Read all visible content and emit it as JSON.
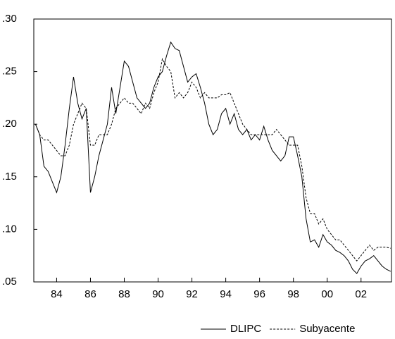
{
  "chart_data": {
    "type": "line",
    "x": [
      1982.75,
      1983,
      1983.25,
      1983.5,
      1983.75,
      1984,
      1984.25,
      1984.5,
      1984.75,
      1985,
      1985.25,
      1985.5,
      1985.75,
      1986,
      1986.25,
      1986.5,
      1986.75,
      1987,
      1987.25,
      1987.5,
      1987.75,
      1988,
      1988.25,
      1988.5,
      1988.75,
      1989,
      1989.25,
      1989.5,
      1989.75,
      1990,
      1990.25,
      1990.5,
      1990.75,
      1991,
      1991.25,
      1991.5,
      1991.75,
      1992,
      1992.25,
      1992.5,
      1992.75,
      1993,
      1993.25,
      1993.5,
      1993.75,
      1994,
      1994.25,
      1994.5,
      1994.75,
      1995,
      1995.25,
      1995.5,
      1995.75,
      1996,
      1996.25,
      1996.5,
      1996.75,
      1997,
      1997.25,
      1997.5,
      1997.75,
      1998,
      1998.25,
      1998.5,
      1998.75,
      1999,
      1999.25,
      1999.5,
      1999.75,
      2000,
      2000.25,
      2000.5,
      2000.75,
      2001,
      2001.25,
      2001.5,
      2001.75,
      2002,
      2002.25,
      2002.5,
      2002.75,
      2003,
      2003.25,
      2003.5,
      2003.75
    ],
    "series": [
      {
        "name": "DLIPC",
        "color": "#000000",
        "line_style": "solid",
        "values": [
          0.2,
          0.19,
          0.16,
          0.155,
          0.145,
          0.135,
          0.15,
          0.18,
          0.215,
          0.245,
          0.22,
          0.205,
          0.215,
          0.135,
          0.15,
          0.17,
          0.185,
          0.2,
          0.235,
          0.21,
          0.235,
          0.26,
          0.255,
          0.24,
          0.225,
          0.22,
          0.215,
          0.22,
          0.235,
          0.245,
          0.25,
          0.265,
          0.278,
          0.272,
          0.27,
          0.255,
          0.24,
          0.245,
          0.248,
          0.235,
          0.22,
          0.2,
          0.19,
          0.195,
          0.21,
          0.215,
          0.2,
          0.21,
          0.195,
          0.19,
          0.195,
          0.185,
          0.19,
          0.185,
          0.198,
          0.185,
          0.175,
          0.17,
          0.165,
          0.17,
          0.188,
          0.188,
          0.17,
          0.15,
          0.11,
          0.088,
          0.09,
          0.083,
          0.095,
          0.088,
          0.085,
          0.08,
          0.078,
          0.075,
          0.07,
          0.062,
          0.058,
          0.065,
          0.07,
          0.072,
          0.075,
          0.07,
          0.065,
          0.062,
          0.06
        ]
      },
      {
        "name": "Subyacente",
        "color": "#000000",
        "line_style": "dashed",
        "values": [
          0.2,
          0.19,
          0.185,
          0.185,
          0.18,
          0.175,
          0.17,
          0.17,
          0.18,
          0.2,
          0.21,
          0.22,
          0.215,
          0.18,
          0.18,
          0.19,
          0.19,
          0.19,
          0.2,
          0.215,
          0.22,
          0.225,
          0.22,
          0.22,
          0.215,
          0.21,
          0.22,
          0.215,
          0.23,
          0.24,
          0.262,
          0.255,
          0.25,
          0.225,
          0.23,
          0.225,
          0.23,
          0.24,
          0.235,
          0.225,
          0.23,
          0.225,
          0.225,
          0.225,
          0.228,
          0.228,
          0.23,
          0.22,
          0.21,
          0.2,
          0.195,
          0.19,
          0.19,
          0.19,
          0.19,
          0.19,
          0.19,
          0.195,
          0.19,
          0.185,
          0.18,
          0.18,
          0.18,
          0.16,
          0.13,
          0.115,
          0.115,
          0.105,
          0.11,
          0.1,
          0.095,
          0.09,
          0.09,
          0.085,
          0.08,
          0.075,
          0.07,
          0.075,
          0.08,
          0.085,
          0.08,
          0.083,
          0.083,
          0.083,
          0.082
        ]
      }
    ],
    "xlim": [
      1982.65,
      2003.8
    ],
    "xticks": [
      {
        "value": 1984,
        "label": "84"
      },
      {
        "value": 1986,
        "label": "86"
      },
      {
        "value": 1988,
        "label": "88"
      },
      {
        "value": 1990,
        "label": "90"
      },
      {
        "value": 1992,
        "label": "92"
      },
      {
        "value": 1994,
        "label": "94"
      },
      {
        "value": 1996,
        "label": "96"
      },
      {
        "value": 1998,
        "label": "98"
      },
      {
        "value": 2000,
        "label": "00"
      },
      {
        "value": 2002,
        "label": "02"
      }
    ],
    "ylim": [
      0.05,
      0.3
    ],
    "yticks": [
      {
        "value": 0.05,
        "label": ".05"
      },
      {
        "value": 0.1,
        "label": ".10"
      },
      {
        "value": 0.15,
        "label": ".15"
      },
      {
        "value": 0.2,
        "label": ".20"
      },
      {
        "value": 0.25,
        "label": ".25"
      },
      {
        "value": 0.3,
        "label": ".30"
      }
    ],
    "legend": "bottom-right"
  }
}
